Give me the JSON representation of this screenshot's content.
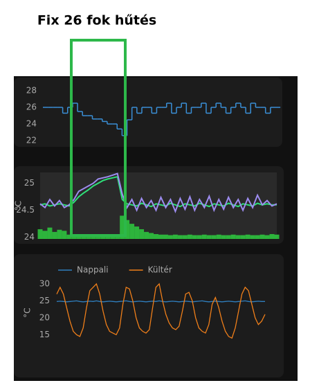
{
  "annotation": "Fix 26 fok hűtés",
  "chart_data": [
    {
      "type": "line",
      "step": true,
      "ylim": [
        21.5,
        29
      ],
      "yticks": [
        22,
        24,
        26,
        28
      ],
      "grid": false,
      "series": [
        {
          "color": "#3a8fd6",
          "values": [
            26,
            26,
            26,
            26,
            25.3,
            26,
            26.5,
            25.5,
            25,
            25,
            24.6,
            24.6,
            24.3,
            24,
            24,
            23.4,
            22.6,
            24.5,
            26,
            25.3,
            26,
            26,
            25.3,
            26,
            26,
            26.5,
            25.3,
            26,
            26.5,
            25.3,
            26,
            26,
            26.5,
            25.3,
            26,
            26.5,
            26,
            25.3,
            26,
            26.5,
            26,
            25.3,
            26.5,
            26,
            26,
            25.3,
            26,
            26
          ]
        }
      ]
    },
    {
      "type": "line",
      "y_label": "°C",
      "ylim": [
        23.97,
        25.2
      ],
      "yticks": [
        24,
        24.5,
        25
      ],
      "grid": false,
      "series": [
        {
          "color": "#2ecc40",
          "fill": true,
          "values": [
            24.15,
            24.12,
            24.18,
            24.1,
            24.14,
            24.12,
            24.05,
            24.04,
            24.03,
            24.03,
            24.03,
            24.03,
            24.03,
            24.03,
            24.03,
            24.03,
            24.03,
            24.4,
            24.32,
            24.25,
            24.2,
            24.15,
            24.1,
            24.08,
            24.06,
            24.05,
            24.05,
            24.04,
            24.05,
            24.04,
            24.04,
            24.05,
            24.04,
            24.04,
            24.05,
            24.04,
            24.04,
            24.05,
            24.04,
            24.04,
            24.05,
            24.04,
            24.04,
            24.05,
            24.04,
            24.04,
            24.05,
            24.04,
            24.06,
            24.05
          ]
        },
        {
          "color": "#2ee07a",
          "values": [
            24.6,
            24.62,
            24.58,
            24.6,
            24.62,
            24.6,
            24.58,
            24.65,
            24.75,
            24.82,
            24.88,
            24.95,
            25.0,
            25.05,
            25.08,
            25.1,
            25.12,
            24.7,
            24.62,
            24.6,
            24.58,
            24.63,
            24.6,
            24.57,
            24.62,
            24.6,
            24.58,
            24.63,
            24.6,
            24.57,
            24.62,
            24.6,
            24.58,
            24.63,
            24.6,
            24.57,
            24.62,
            24.6,
            24.58,
            24.63,
            24.6,
            24.57,
            24.62,
            24.6,
            24.58,
            24.63,
            24.6,
            24.62,
            24.6,
            24.6
          ]
        },
        {
          "color": "#9d8cf0",
          "values": [
            24.62,
            24.55,
            24.7,
            24.58,
            24.68,
            24.55,
            24.6,
            24.7,
            24.85,
            24.9,
            24.95,
            25.0,
            25.08,
            25.1,
            25.12,
            25.15,
            25.18,
            24.8,
            24.55,
            24.7,
            24.5,
            24.72,
            24.55,
            24.68,
            24.5,
            24.74,
            24.55,
            24.7,
            24.48,
            24.72,
            24.52,
            24.75,
            24.5,
            24.7,
            24.55,
            24.76,
            24.5,
            24.7,
            24.52,
            24.74,
            24.55,
            24.7,
            24.5,
            24.72,
            24.55,
            24.78,
            24.6,
            24.68,
            24.58,
            24.62
          ]
        }
      ]
    },
    {
      "type": "line",
      "y_label": "°C",
      "ylim": [
        12,
        31
      ],
      "yticks": [
        15,
        20,
        25,
        30
      ],
      "grid": false,
      "legend": "top-left",
      "series": [
        {
          "name": "Nappali",
          "color": "#2f7fbf",
          "values": [
            24.8,
            24.9,
            24.8,
            24.7,
            24.8,
            24.9,
            25,
            24.8,
            24.7,
            24.8,
            24.9,
            24.8,
            25,
            24.8,
            24.7,
            24.8,
            24.9,
            24.8,
            24.7,
            24.8,
            24.9,
            25,
            24.8,
            24.7,
            24.8,
            24.9,
            24.8,
            24.7,
            24.8,
            24.9,
            24.8,
            25,
            24.8,
            24.7,
            24.8,
            24.9,
            24.8,
            24.7,
            24.8,
            24.9,
            24.8,
            24.7,
            24.8,
            24.9,
            25,
            24.8,
            24.7,
            24.8,
            24.9,
            24.8,
            24.7,
            24.8,
            24.9,
            24.8,
            24.7,
            24.8,
            24.9,
            25,
            24.8,
            24.7,
            24.8,
            24.9,
            24.8,
            24.8
          ]
        },
        {
          "name": "Kültér",
          "color": "#f07f1a",
          "values": [
            27,
            29,
            27,
            23,
            19,
            16,
            15,
            14.5,
            17,
            23,
            28,
            29,
            30,
            27,
            22,
            18,
            16,
            15.5,
            15,
            17,
            24,
            29,
            28.5,
            25,
            20,
            17,
            16,
            15.5,
            16.5,
            23,
            29,
            30,
            25,
            21,
            18.5,
            17,
            16.5,
            17.5,
            22,
            27,
            27.5,
            25,
            20,
            17,
            16,
            15.5,
            18,
            24,
            26,
            23,
            19,
            16,
            14.5,
            14,
            17,
            22,
            27,
            29,
            28,
            24,
            20,
            18,
            19,
            21
          ]
        }
      ]
    }
  ]
}
